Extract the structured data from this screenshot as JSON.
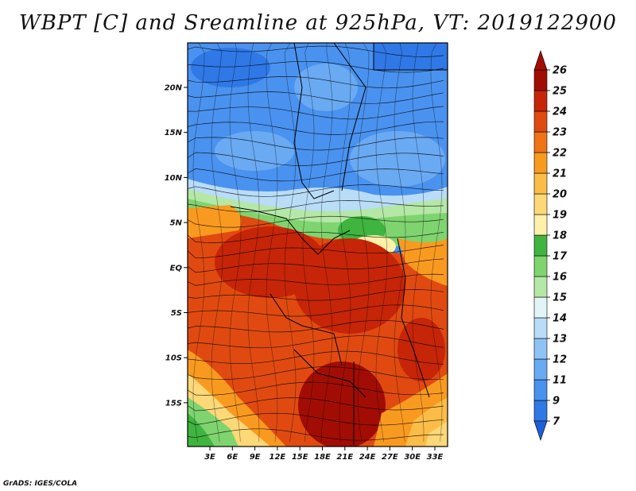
{
  "title": "WBPT [C] and Sreamline at 925hPa, VT: 2019122900",
  "footer": "GrADS: IGES/COLA",
  "map": {
    "lat_ticks": [
      "20N",
      "15N",
      "10N",
      "5N",
      "EQ",
      "5S",
      "10S",
      "15S"
    ],
    "lon_ticks": [
      "3E",
      "6E",
      "9E",
      "12E",
      "15E",
      "18E",
      "21E",
      "24E",
      "27E",
      "30E",
      "33E"
    ]
  },
  "colorbar": {
    "labels": [
      "7",
      "9",
      "11",
      "12",
      "13",
      "14",
      "15",
      "16",
      "17",
      "18",
      "19",
      "20",
      "21",
      "22",
      "23",
      "24",
      "25",
      "26"
    ],
    "colors": [
      "#1f5fd8",
      "#2f78e6",
      "#4a92ef",
      "#6aaaf3",
      "#8fc3f6",
      "#b9dcf7",
      "#e2f4f8",
      "#b5e7a6",
      "#7fd46f",
      "#3fb43f",
      "#fdf0a8",
      "#fcd878",
      "#fbbd47",
      "#f99a20",
      "#f07318",
      "#e04a10",
      "#c62508",
      "#a10d04"
    ]
  }
}
